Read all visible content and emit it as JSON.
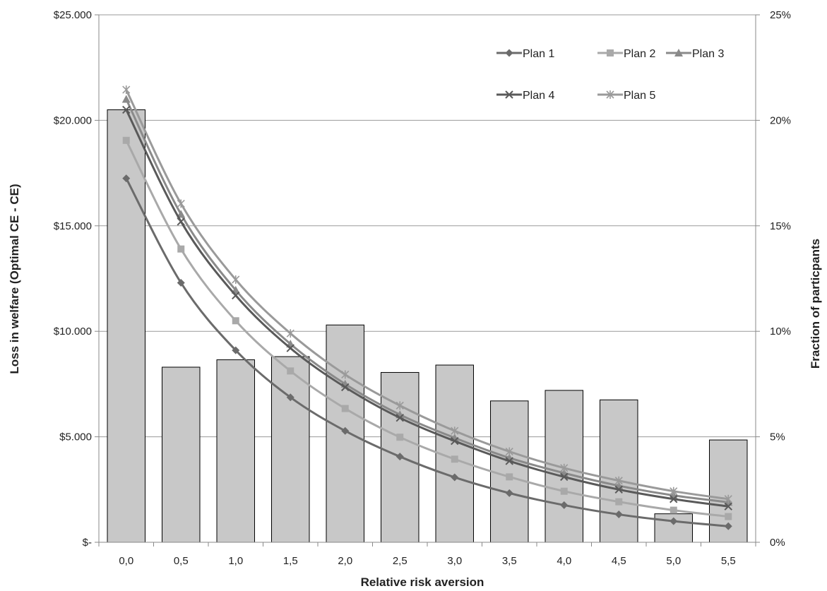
{
  "chart_data": {
    "type": "bar+line",
    "xlabel": "Relative risk aversion",
    "ylabel_left": "Loss in welfare (Optimal CE - CE)",
    "ylabel_right": "Fraction of particpants",
    "categories": [
      "0,0",
      "0,5",
      "1,0",
      "1,5",
      "2,0",
      "2,5",
      "3,0",
      "3,5",
      "4,0",
      "4,5",
      "5,0",
      "5,5"
    ],
    "left_axis": {
      "min": 0,
      "max": 25000,
      "ticks": [
        "$-",
        "$5.000",
        "$10.000",
        "$15.000",
        "$20.000",
        "$25.000"
      ]
    },
    "right_axis": {
      "min": 0,
      "max": 25,
      "ticks": [
        "0%",
        "5%",
        "10%",
        "15%",
        "20%",
        "25%"
      ]
    },
    "grid": true,
    "legend_position": "top-right",
    "bars": {
      "axis": "right",
      "unit": "%",
      "values": [
        20.5,
        8.3,
        8.65,
        8.8,
        10.3,
        8.05,
        8.4,
        6.7,
        7.2,
        6.75,
        1.35,
        4.85
      ],
      "color": "#c8c8c8"
    },
    "series": [
      {
        "name": "Plan 1",
        "marker": "diamond",
        "color": "#6b6b6b",
        "values": [
          17250,
          12300,
          9100,
          6870,
          5280,
          4060,
          3080,
          2330,
          1760,
          1320,
          1000,
          760
        ]
      },
      {
        "name": "Plan 2",
        "marker": "square",
        "color": "#a9a9a9",
        "values": [
          19050,
          13900,
          10500,
          8120,
          6340,
          4980,
          3940,
          3100,
          2420,
          1920,
          1520,
          1220
        ]
      },
      {
        "name": "Plan 3",
        "marker": "triangle",
        "color": "#8a8a8a",
        "values": [
          21000,
          15550,
          11950,
          9400,
          7500,
          6050,
          4950,
          4000,
          3280,
          2680,
          2220,
          1900
        ]
      },
      {
        "name": "Plan 4",
        "marker": "x",
        "color": "#5a5a5a",
        "values": [
          20500,
          15200,
          11700,
          9200,
          7350,
          5900,
          4800,
          3850,
          3100,
          2500,
          2050,
          1700
        ]
      },
      {
        "name": "Plan 5",
        "marker": "star",
        "color": "#9a9a9a",
        "values": [
          21450,
          16050,
          12450,
          9900,
          7950,
          6480,
          5280,
          4300,
          3520,
          2920,
          2420,
          2050
        ]
      }
    ]
  }
}
